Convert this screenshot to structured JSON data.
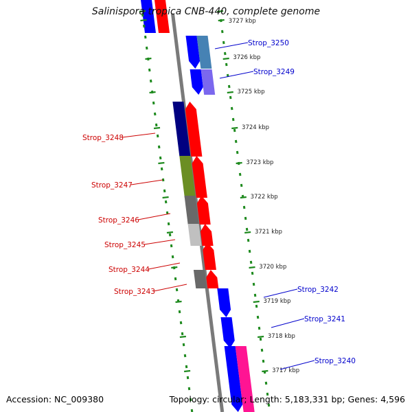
{
  "title": "Salinispora tropica CNB-440, complete genome",
  "footer": {
    "accession": "Accession: NC_009380",
    "summary": "Topology: circular; Length: 5,183,331 bp; Genes: 4,596"
  },
  "colors": {
    "backbone": "#7a7a7a",
    "tick": "#1e8a1e",
    "forward_label": "#0000cc",
    "reverse_label": "#cc0000",
    "strand_forward": "#0000ff",
    "strand_reverse": "#ff0000"
  },
  "scale_labels": [
    {
      "text": "3727 kbp"
    },
    {
      "text": "3726 kbp"
    },
    {
      "text": "3725 kbp"
    },
    {
      "text": "3724 kbp"
    },
    {
      "text": "3723 kbp"
    },
    {
      "text": "3722 kbp"
    },
    {
      "text": "3721 kbp"
    },
    {
      "text": "3720 kbp"
    },
    {
      "text": "3719 kbp"
    },
    {
      "text": "3718 kbp"
    },
    {
      "text": "3717 kbp"
    }
  ],
  "genes": [
    {
      "name": "Strop_3250",
      "strand": "forward",
      "category_color": "#4682b4"
    },
    {
      "name": "Strop_3249",
      "strand": "forward",
      "category_color": "#7b68ee"
    },
    {
      "name": "Strop_3248",
      "strand": "reverse",
      "category_color": "#000080"
    },
    {
      "name": "Strop_3247",
      "strand": "reverse",
      "category_color": "#6b8e23"
    },
    {
      "name": "Strop_3246",
      "strand": "reverse",
      "category_color": "#696969"
    },
    {
      "name": "Strop_3245",
      "strand": "reverse",
      "category_color": "#c0c0c0"
    },
    {
      "name": "Strop_3244",
      "strand": "reverse",
      "category_color": ""
    },
    {
      "name": "Strop_3243",
      "strand": "reverse",
      "category_color": "#696969"
    },
    {
      "name": "Strop_3242",
      "strand": "forward",
      "category_color": ""
    },
    {
      "name": "Strop_3241",
      "strand": "forward",
      "category_color": ""
    },
    {
      "name": "Strop_3240",
      "strand": "forward",
      "category_color": "#ff1493"
    }
  ]
}
